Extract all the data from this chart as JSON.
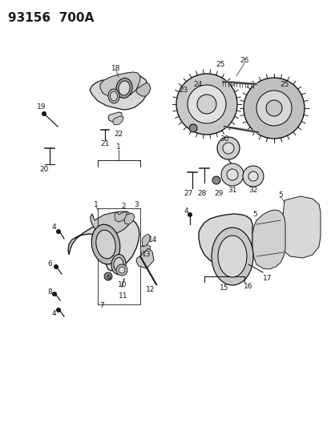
{
  "title": "93156  700A",
  "bg_color": "#ffffff",
  "line_color": "#1a1a1a",
  "label_color": "#1a1a1a",
  "title_fontsize": 11,
  "label_fontsize": 6.5,
  "fig_w": 4.14,
  "fig_h": 5.33,
  "dpi": 100
}
